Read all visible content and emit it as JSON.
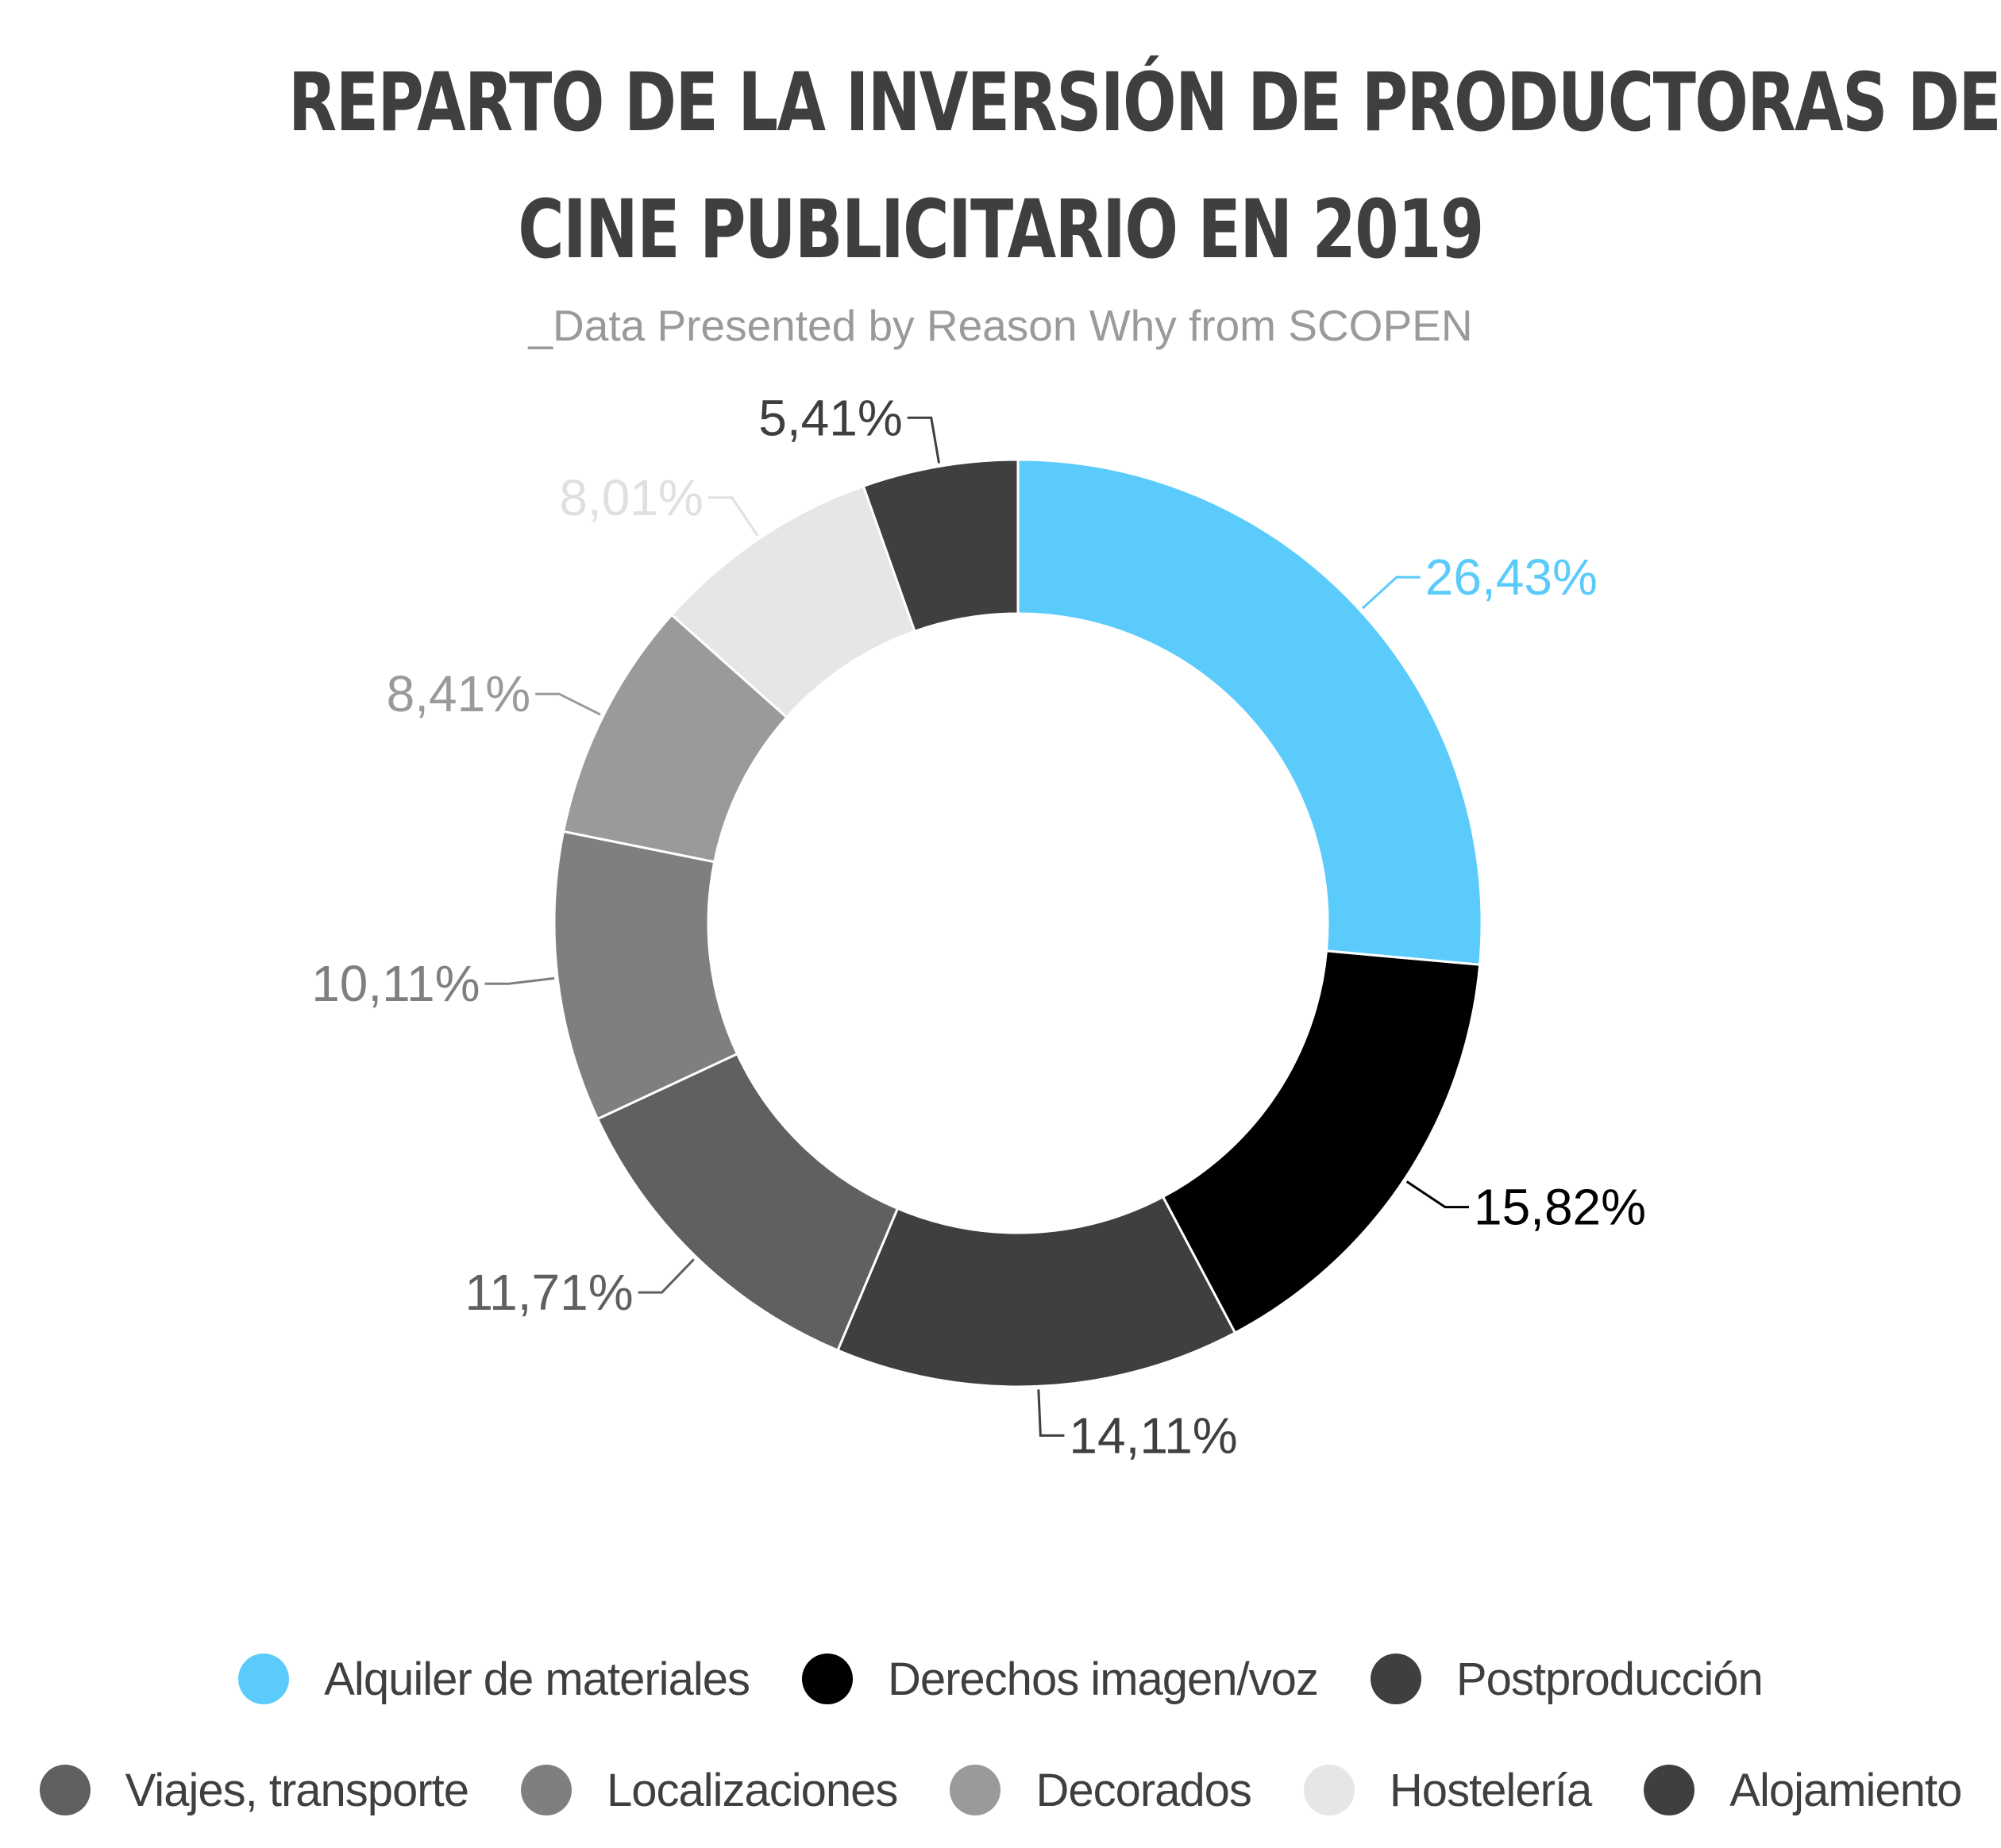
{
  "header": {
    "title_line_1": "REPARTO DE LA INVERSIÓN DE PRODUCTORAS DE",
    "title_line_2": "CINE PUBLICITARIO EN 2019",
    "subtitle": "_Data Presented by Reason Why from SCOPEN"
  },
  "chart_data": {
    "type": "pie",
    "title": "REPARTO DE LA INVERSIÓN DE PRODUCTORAS DE CINE PUBLICITARIO EN 2019",
    "subtitle": "_Data Presented by Reason Why from SCOPEN",
    "donut": true,
    "legend_position": "bottom",
    "slices": [
      {
        "name": "Alquiler de materiales",
        "value": 26.43,
        "label": "26,43%",
        "color": "#5bcbfc",
        "label_color": "#5bcbfc"
      },
      {
        "name": "Derechos imagen/voz",
        "value": 15.82,
        "label": "15,82%",
        "color": "#000000",
        "label_color": "#000000"
      },
      {
        "name": "Postproducción",
        "value": 14.11,
        "label": "14,11%",
        "color": "#3f3f3f",
        "label_color": "#3f3f3f"
      },
      {
        "name": "Viajes, transporte",
        "value": 11.71,
        "label": "11,71%",
        "color": "#606060",
        "label_color": "#606060"
      },
      {
        "name": "Localizaciones",
        "value": 10.11,
        "label": "10,11%",
        "color": "#7f7f7f",
        "label_color": "#7f7f7f"
      },
      {
        "name": "Decorados",
        "value": 8.41,
        "label": "8,41%",
        "color": "#9a9a9a",
        "label_color": "#9a9a9a"
      },
      {
        "name": "Hostelería",
        "value": 8.01,
        "label": "8,01%",
        "color": "#e6e6e6",
        "label_color": "#e0e0e0"
      },
      {
        "name": "Alojamiento",
        "value": 5.41,
        "label": "5,41%",
        "color": "#3f3f3f",
        "label_color": "#3f3f3f"
      }
    ]
  }
}
